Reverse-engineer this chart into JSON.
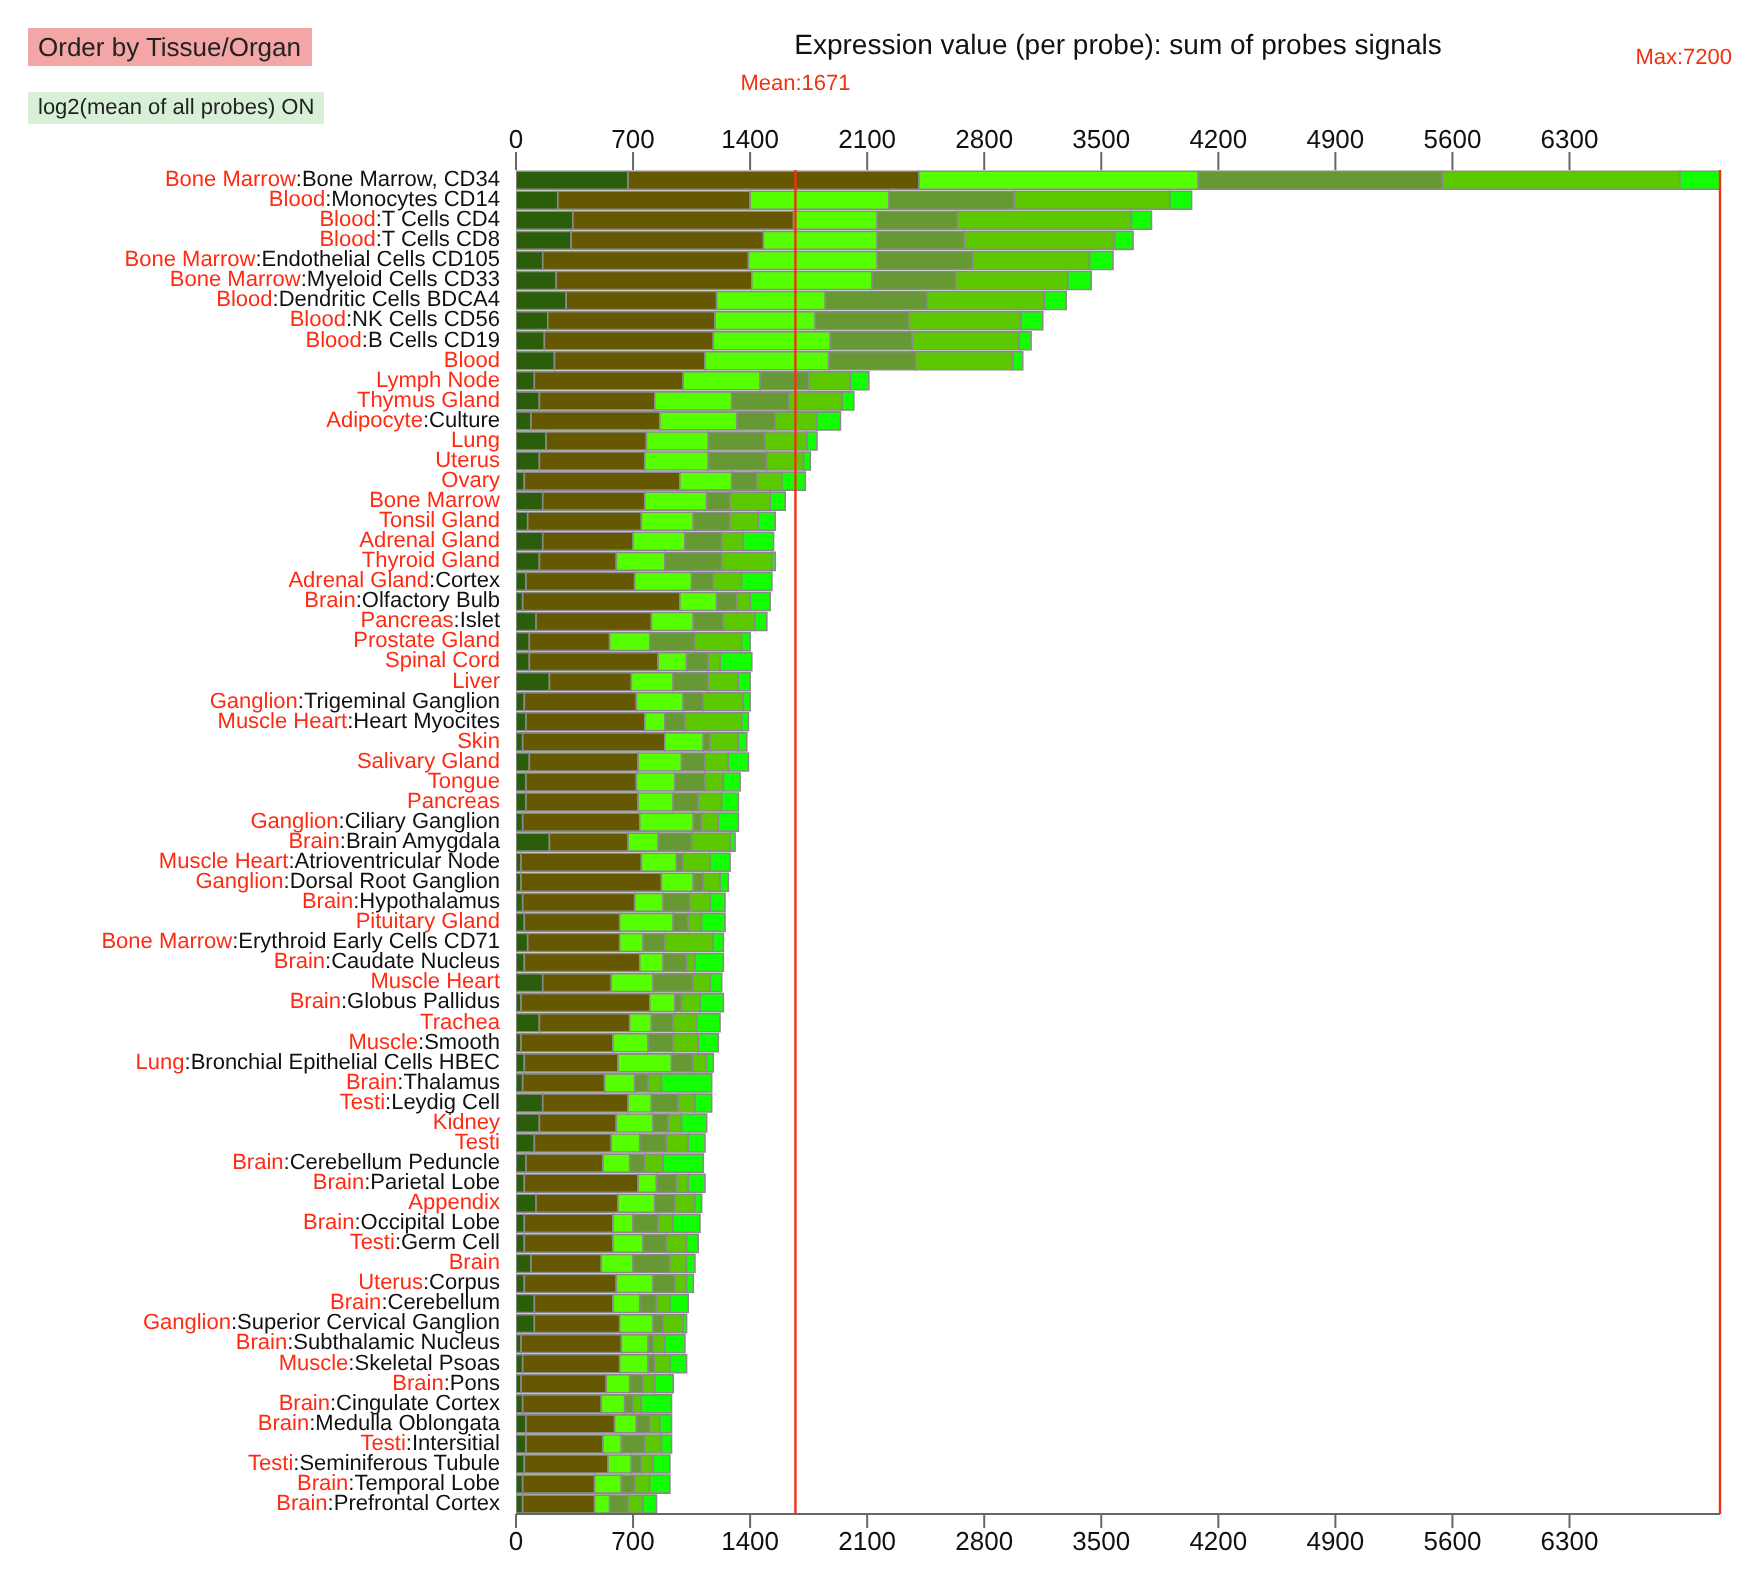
{
  "chart_data": {
    "type": "bar",
    "orientation": "horizontal",
    "stacked": true,
    "title": "Expression value (per probe): sum of probes signals",
    "annotations": [
      "Order by Tissue/Organ",
      "log2(mean of all probes) ON"
    ],
    "categories": [
      "Bone Marrow:Bone Marrow, CD34",
      "Blood:Monocytes CD14",
      "Blood:T Cells CD4",
      "Blood:T Cells CD8",
      "Bone Marrow:Endothelial Cells CD105",
      "Bone Marrow:Myeloid Cells CD33",
      "Blood:Dendritic Cells BDCA4",
      "Blood:NK Cells CD56",
      "Blood:B Cells CD19",
      "Blood",
      "Lymph Node",
      "Thymus Gland",
      "Adipocyte:Culture",
      "Lung",
      "Uterus",
      "Ovary",
      "Bone Marrow",
      "Tonsil Gland",
      "Adrenal Gland",
      "Thyroid Gland",
      "Adrenal Gland:Cortex",
      "Brain:Olfactory Bulb",
      "Pancreas:Islet",
      "Prostate Gland",
      "Spinal Cord",
      "Liver",
      "Ganglion:Trigeminal Ganglion",
      "Muscle Heart:Heart Myocites",
      "Skin",
      "Salivary Gland",
      "Tongue",
      "Pancreas",
      "Ganglion:Ciliary Ganglion",
      "Brain:Brain Amygdala",
      "Muscle Heart:Atrioventricular Node",
      "Ganglion:Dorsal Root Ganglion",
      "Brain:Hypothalamus",
      "Pituitary Gland",
      "Bone Marrow:Erythroid Early Cells CD71",
      "Brain:Caudate Nucleus",
      "Muscle Heart",
      "Brain:Globus Pallidus",
      "Trachea",
      "Muscle:Smooth",
      "Lung:Bronchial Epithelial Cells HBEC",
      "Brain:Thalamus",
      "Testi:Leydig Cell",
      "Kidney",
      "Testi",
      "Brain:Cerebellum Peduncle",
      "Brain:Parietal Lobe",
      "Appendix",
      "Brain:Occipital Lobe",
      "Testi:Germ Cell",
      "Brain",
      "Uterus:Corpus",
      "Brain:Cerebellum",
      "Ganglion:Superior Cervical Ganglion",
      "Brain:Subthalamic Nucleus",
      "Muscle:Skeletal Psoas",
      "Brain:Pons",
      "Brain:Cingulate Cortex",
      "Brain:Medulla Oblongata",
      "Testi:Intersitial",
      "Testi:Seminiferous Tubule",
      "Brain:Temporal Lobe",
      "Brain:Prefrontal Cortex"
    ],
    "series": [
      {
        "color": "#2b5e0a",
        "values": [
          670,
          250,
          340,
          330,
          160,
          240,
          300,
          190,
          170,
          230,
          110,
          140,
          90,
          180,
          140,
          50,
          160,
          70,
          160,
          140,
          60,
          40,
          120,
          80,
          80,
          200,
          50,
          60,
          40,
          80,
          60,
          60,
          40,
          200,
          30,
          30,
          40,
          50,
          70,
          50,
          160,
          30,
          140,
          30,
          50,
          40,
          160,
          140,
          110,
          60,
          50,
          120,
          50,
          50,
          90,
          50,
          110,
          110,
          30,
          40,
          30,
          40,
          60,
          60,
          50,
          40,
          40
        ]
      },
      {
        "color": "#665800",
        "values": [
          1740,
          1150,
          1320,
          1150,
          1230,
          1170,
          900,
          1000,
          1010,
          900,
          890,
          690,
          770,
          600,
          630,
          930,
          610,
          680,
          540,
          460,
          650,
          940,
          690,
          480,
          770,
          490,
          670,
          710,
          850,
          650,
          660,
          670,
          700,
          470,
          720,
          840,
          670,
          570,
          550,
          690,
          410,
          770,
          540,
          550,
          560,
          490,
          510,
          460,
          460,
          460,
          680,
          490,
          530,
          530,
          420,
          550,
          470,
          510,
          600,
          580,
          510,
          470,
          530,
          460,
          500,
          430,
          430
        ]
      },
      {
        "color": "#55ff00",
        "values": [
          1670,
          830,
          500,
          680,
          770,
          720,
          650,
          600,
          700,
          740,
          460,
          460,
          460,
          370,
          380,
          310,
          370,
          310,
          310,
          290,
          340,
          220,
          250,
          240,
          170,
          250,
          280,
          120,
          230,
          260,
          230,
          210,
          320,
          180,
          210,
          190,
          170,
          320,
          140,
          140,
          250,
          150,
          130,
          210,
          320,
          180,
          140,
          220,
          170,
          160,
          110,
          220,
          120,
          180,
          190,
          220,
          160,
          200,
          160,
          170,
          140,
          140,
          130,
          110,
          140,
          160,
          90
        ]
      },
      {
        "color": "#669933",
        "values": [
          1460,
          750,
          480,
          520,
          570,
          500,
          610,
          560,
          490,
          520,
          290,
          340,
          230,
          340,
          350,
          150,
          140,
          220,
          220,
          340,
          130,
          120,
          180,
          270,
          130,
          210,
          120,
          120,
          40,
          140,
          180,
          150,
          50,
          200,
          40,
          60,
          160,
          90,
          130,
          140,
          240,
          40,
          130,
          150,
          130,
          80,
          160,
          90,
          160,
          90,
          120,
          120,
          150,
          140,
          220,
          130,
          100,
          60,
          30,
          40,
          80,
          50,
          80,
          140,
          60,
          80,
          110
        ]
      },
      {
        "color": "#5cc800",
        "values": [
          1420,
          930,
          1040,
          900,
          700,
          670,
          700,
          670,
          640,
          580,
          250,
          320,
          250,
          250,
          220,
          150,
          240,
          170,
          130,
          300,
          170,
          80,
          190,
          280,
          70,
          180,
          240,
          340,
          170,
          140,
          110,
          140,
          100,
          230,
          160,
          100,
          120,
          80,
          290,
          50,
          100,
          110,
          140,
          150,
          80,
          80,
          100,
          80,
          130,
          110,
          70,
          120,
          90,
          120,
          100,
          70,
          80,
          120,
          70,
          90,
          70,
          50,
          60,
          100,
          70,
          90,
          90
        ]
      },
      {
        "color": "#11ff00",
        "values": [
          240,
          130,
          120,
          110,
          140,
          140,
          130,
          130,
          70,
          60,
          110,
          70,
          140,
          60,
          40,
          140,
          90,
          100,
          180,
          20,
          180,
          120,
          70,
          50,
          190,
          70,
          40,
          40,
          50,
          120,
          100,
          100,
          120,
          30,
          120,
          50,
          90,
          140,
          60,
          170,
          70,
          140,
          140,
          120,
          40,
          300,
          100,
          150,
          100,
          240,
          100,
          40,
          160,
          70,
          50,
          40,
          110,
          20,
          120,
          100,
          110,
          180,
          70,
          60,
          100,
          120,
          80
        ]
      }
    ],
    "xlim": [
      0,
      7200
    ],
    "xticks": [
      0,
      700,
      1400,
      2100,
      2800,
      3500,
      4200,
      4900,
      5600,
      6300
    ],
    "x2lim": [
      0,
      7200
    ],
    "x2ticks": [
      0,
      700,
      1400,
      2100,
      2800,
      3500,
      4200,
      4900,
      5600,
      6300
    ],
    "ref_lines": [
      {
        "axis": "x",
        "value": 1671,
        "label": "Mean:1671",
        "color": "#ee3311"
      },
      {
        "axis": "x",
        "value": 7200,
        "label": "Max:7200",
        "color": "#ee3311"
      }
    ]
  }
}
